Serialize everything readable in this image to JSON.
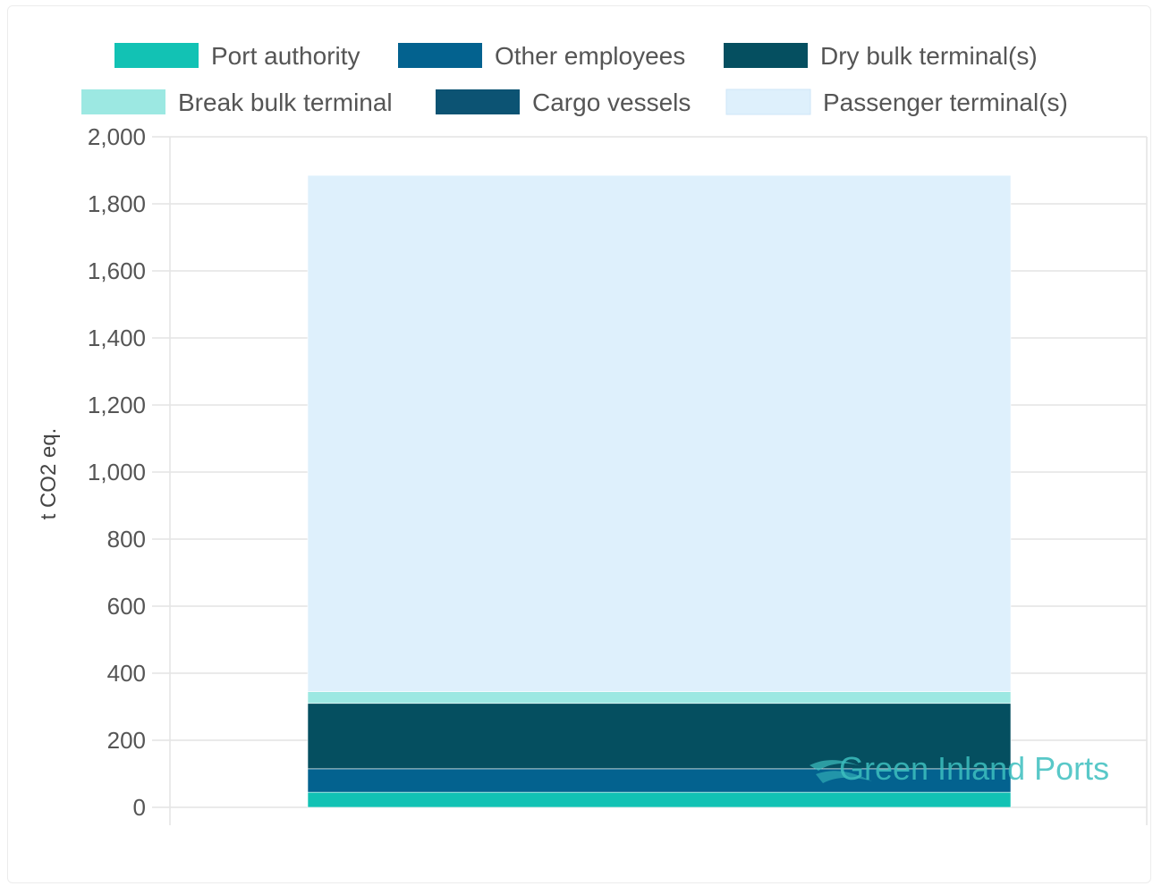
{
  "chart_data": {
    "type": "bar",
    "stacked": true,
    "categories": [
      ""
    ],
    "ylabel": "t CO2 eq.",
    "ylim": [
      0,
      2000
    ],
    "yticks": [
      0,
      200,
      400,
      600,
      800,
      1000,
      1200,
      1400,
      1600,
      1800,
      2000
    ],
    "ytick_labels": [
      "0",
      "200",
      "400",
      "600",
      "800",
      "1,000",
      "1,200",
      "1,400",
      "1,600",
      "1,800",
      "2,000"
    ],
    "grid": true,
    "legend_position": "top",
    "series": [
      {
        "name": "Port authority",
        "values": [
          45
        ],
        "color": "#12c2b4"
      },
      {
        "name": "Other employees",
        "values": [
          70
        ],
        "color": "#03628f"
      },
      {
        "name": "Dry bulk terminal(s)",
        "values": [
          195
        ],
        "color": "#054f60"
      },
      {
        "name": "Break bulk terminal",
        "values": [
          35
        ],
        "color": "#9ce8e2"
      },
      {
        "name": "Cargo vessels",
        "values": [
          0
        ],
        "color": "#0c5373"
      },
      {
        "name": "Passenger terminal(s)",
        "values": [
          1540
        ],
        "color": "#def0fc"
      }
    ]
  },
  "watermark": {
    "text": "Green Inland Ports"
  }
}
